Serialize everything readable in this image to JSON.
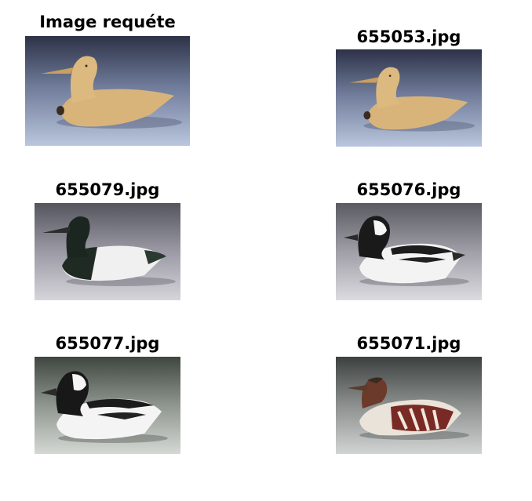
{
  "figure": {
    "query": {
      "title": "Image requéte",
      "image_icon": "wooden-duck-decoy-tan"
    },
    "results": [
      {
        "title": "655053.jpg",
        "image_icon": "wooden-duck-decoy-tan"
      },
      {
        "title": "655079.jpg",
        "image_icon": "duck-decoy-black-white"
      },
      {
        "title": "655076.jpg",
        "image_icon": "bufflehead-decoy-black-white"
      },
      {
        "title": "655077.jpg",
        "image_icon": "bufflehead-decoy-black-white"
      },
      {
        "title": "655071.jpg",
        "image_icon": "merganser-decoy-multicolor"
      }
    ]
  }
}
